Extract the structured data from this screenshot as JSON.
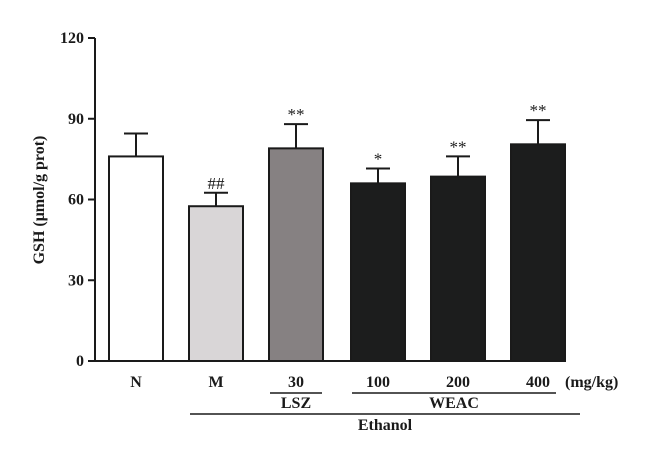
{
  "chart_data": {
    "type": "bar",
    "ylabel": "GSH (μmol/g prot)",
    "ylim": [
      0,
      120
    ],
    "yticks": [
      "0",
      "30",
      "60",
      "90",
      "120"
    ],
    "unit_label": "(mg/kg)",
    "categories": [
      "N",
      "M",
      "30",
      "100",
      "200",
      "400"
    ],
    "values": [
      76,
      57.5,
      79,
      66,
      68.5,
      80.5
    ],
    "errors": [
      8.5,
      5,
      9,
      5.5,
      7.5,
      9
    ],
    "significance": [
      "",
      "##",
      "**",
      "*",
      "**",
      "**"
    ],
    "bar_colors": [
      "#ffffff",
      "#d9d6d7",
      "#868182",
      "#1c1d1d",
      "#1c1d1d",
      "#1c1d1d"
    ],
    "groups": [
      {
        "label": "LSZ",
        "from": 2,
        "to": 2
      },
      {
        "label": "WEAC",
        "from": 3,
        "to": 5
      },
      {
        "label": "Ethanol",
        "from": 1,
        "to": 6
      }
    ]
  }
}
